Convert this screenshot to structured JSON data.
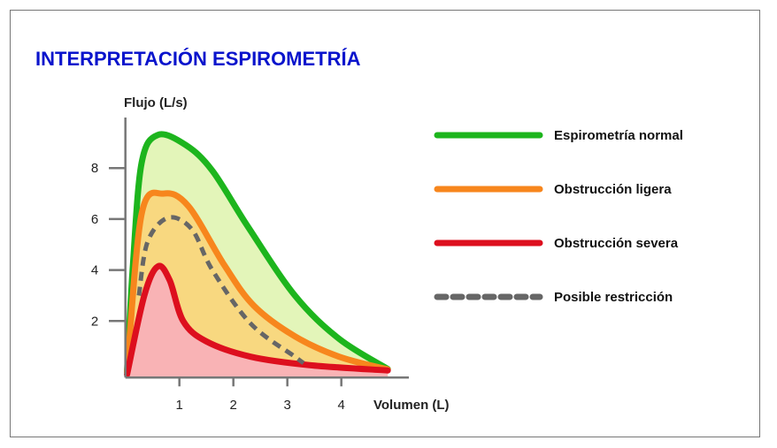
{
  "chart_data": {
    "type": "line",
    "title": "INTERPRETACIÓN ESPIROMETRÍA",
    "xlabel": "Volumen (L)",
    "ylabel": "Flujo (L/s)",
    "xlim": [
      0,
      5.2
    ],
    "ylim": [
      -0.2,
      10
    ],
    "xticks": [
      "1",
      "2",
      "3",
      "4"
    ],
    "yticks": [
      "2",
      "4",
      "6",
      "8"
    ],
    "grid": false,
    "legend_position": "right",
    "series": [
      {
        "name": "Espirometría normal",
        "color": "#1db51d",
        "fill": "#e3f5b9",
        "dashed": false,
        "points": [
          [
            0.03,
            0
          ],
          [
            0.14,
            4.2
          ],
          [
            0.3,
            8.2
          ],
          [
            0.6,
            9.3
          ],
          [
            1.12,
            8.9
          ],
          [
            1.61,
            7.9
          ],
          [
            2.27,
            5.7
          ],
          [
            3.14,
            3.0
          ],
          [
            3.96,
            1.3
          ],
          [
            4.86,
            0.12
          ]
        ]
      },
      {
        "name": "Obstrucción ligera",
        "color": "#f7861d",
        "fill": "#f8d880",
        "dashed": false,
        "points": [
          [
            0.03,
            0
          ],
          [
            0.3,
            6.2
          ],
          [
            0.71,
            7.0
          ],
          [
            1.17,
            6.5
          ],
          [
            1.83,
            4.2
          ],
          [
            2.38,
            2.6
          ],
          [
            3.14,
            1.4
          ],
          [
            3.96,
            0.6
          ],
          [
            4.86,
            0.1
          ]
        ]
      },
      {
        "name": "Obstrucción severa",
        "color": "#dd0f1e",
        "fill": "#f9b3b5",
        "dashed": false,
        "points": [
          [
            0.03,
            -0.1
          ],
          [
            0.35,
            3.0
          ],
          [
            0.6,
            4.14
          ],
          [
            0.82,
            3.6
          ],
          [
            1.07,
            2.0
          ],
          [
            1.5,
            1.2
          ],
          [
            2.32,
            0.6
          ],
          [
            3.41,
            0.27
          ],
          [
            4.86,
            0.06
          ]
        ]
      },
      {
        "name": "Posible restricción",
        "color": "#666666",
        "fill": "none",
        "dashed": true,
        "points": [
          [
            0.25,
            3.0
          ],
          [
            0.41,
            5.1
          ],
          [
            0.79,
            6.05
          ],
          [
            1.23,
            5.6
          ],
          [
            1.61,
            4.0
          ],
          [
            2.32,
            1.9
          ],
          [
            3.14,
            0.6
          ],
          [
            3.3,
            0.35
          ]
        ]
      }
    ]
  }
}
